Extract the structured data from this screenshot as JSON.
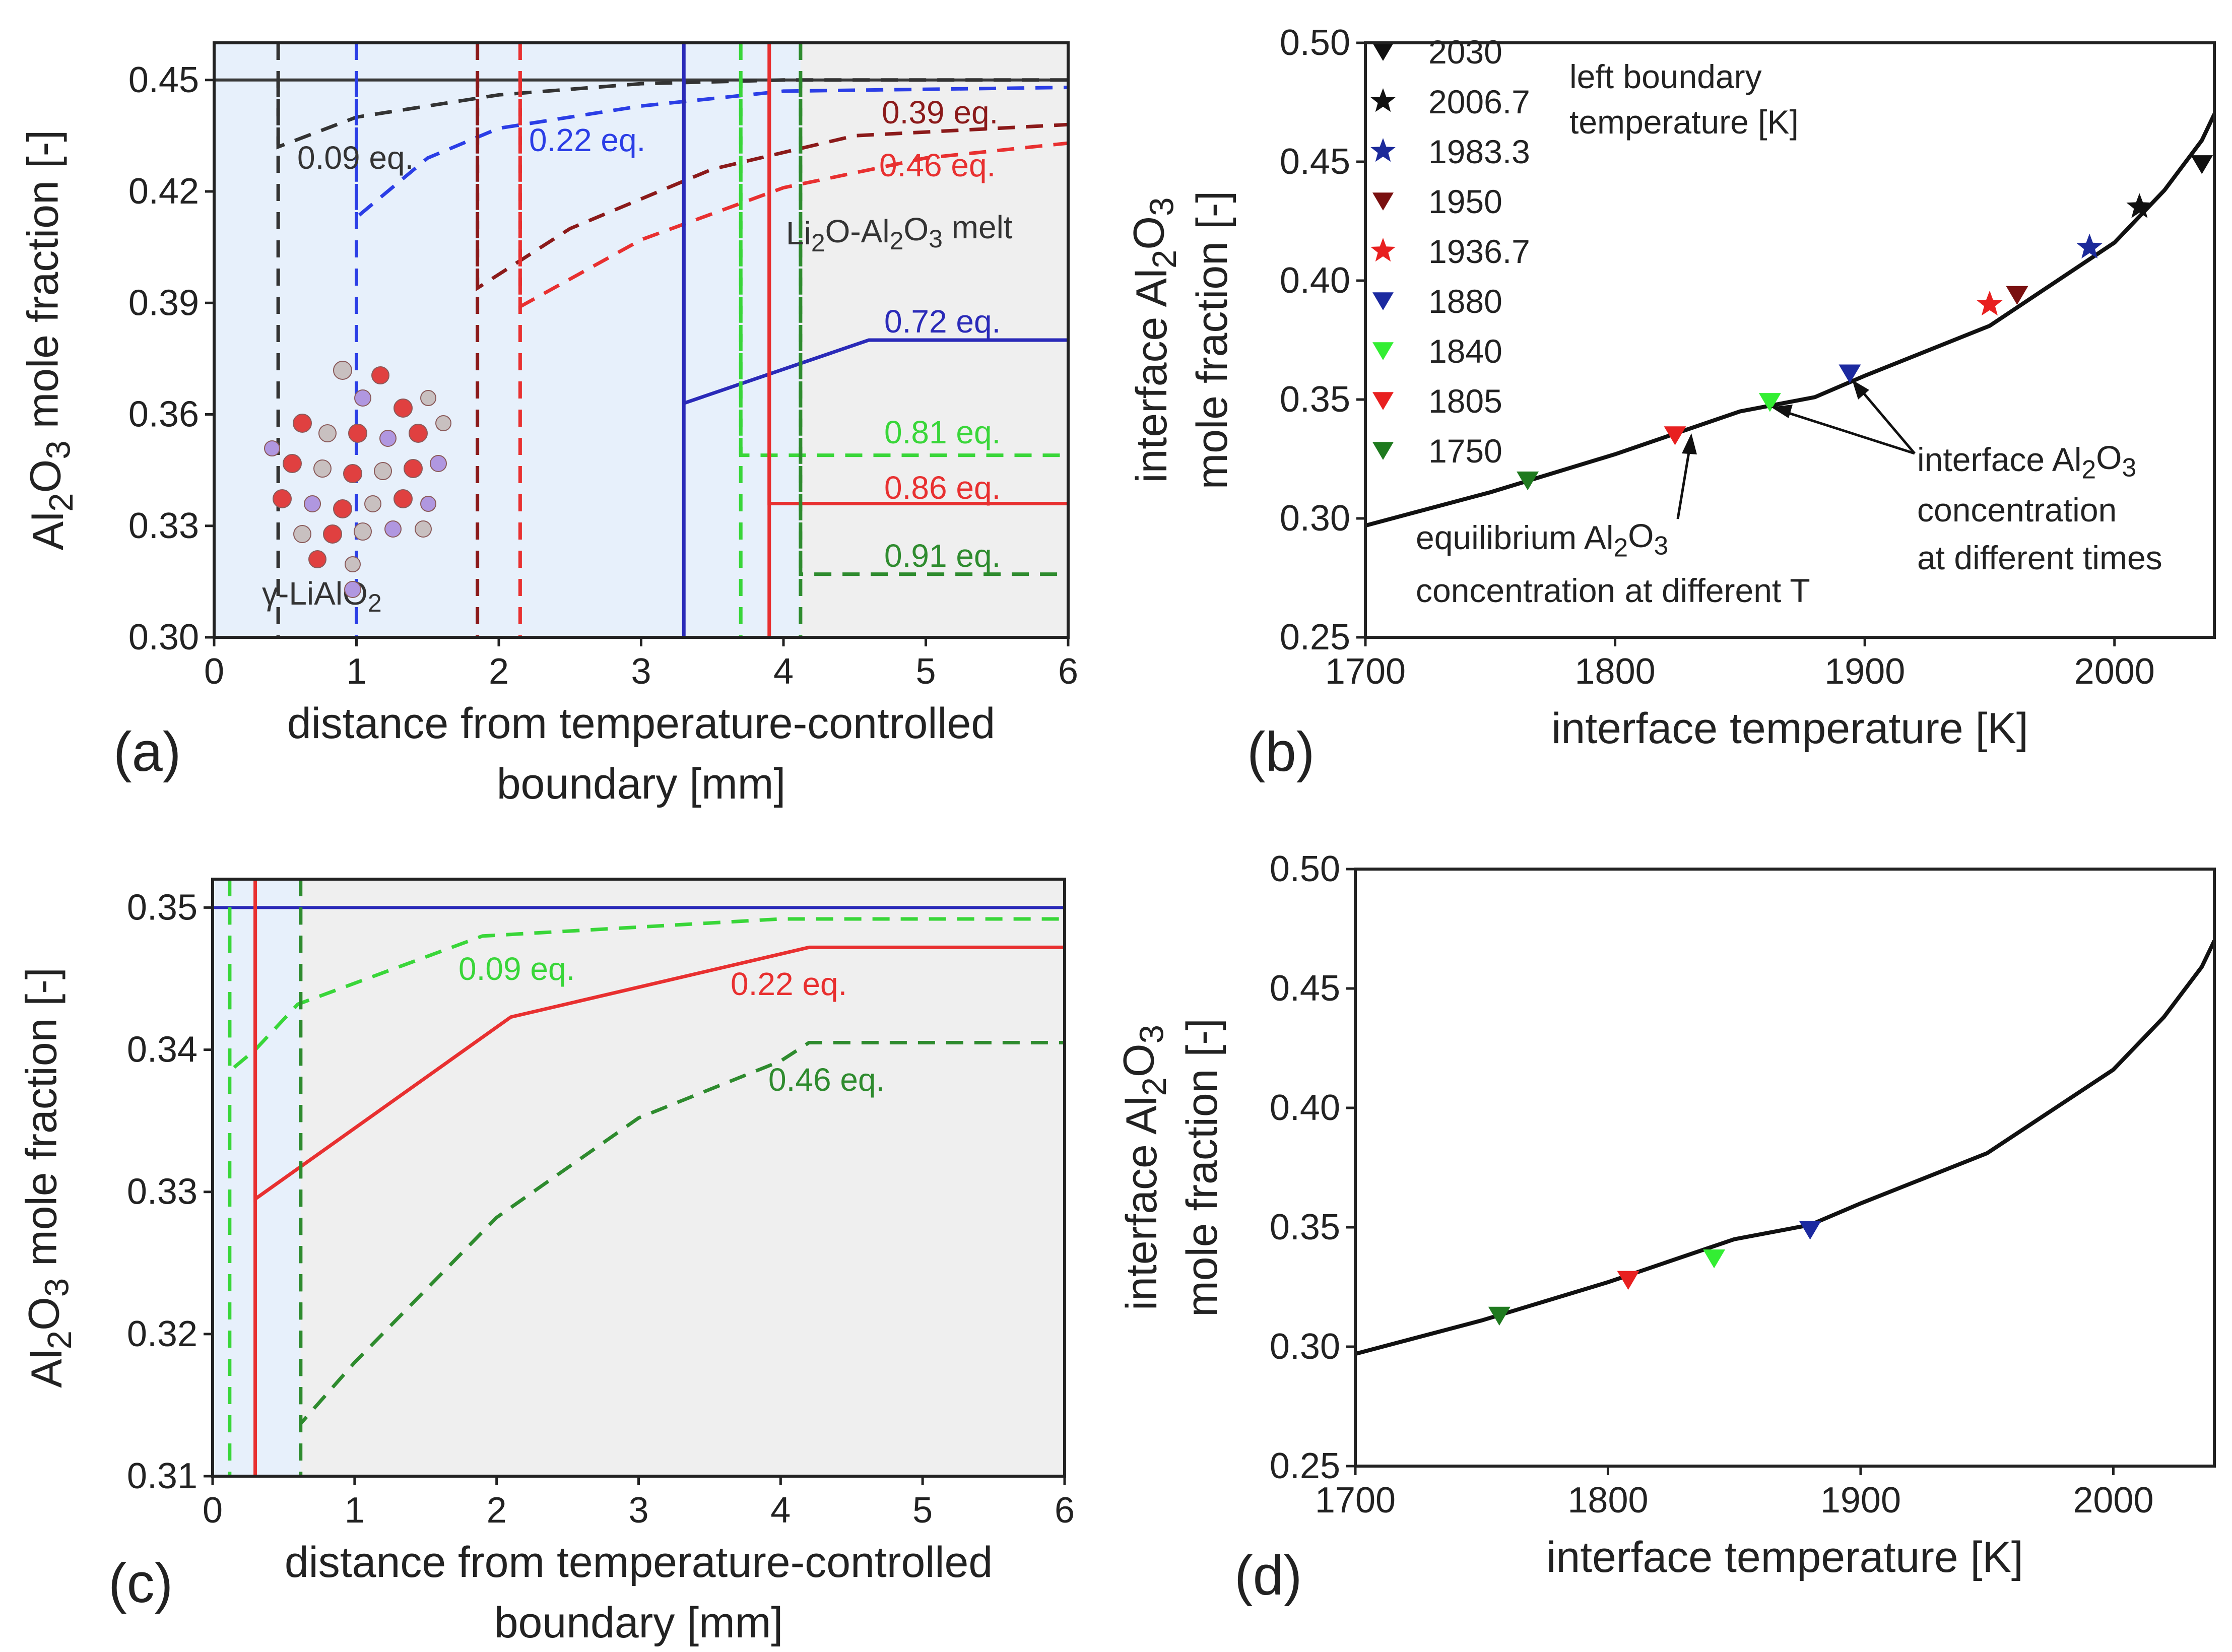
{
  "chart_data": [
    {
      "panel_label": "(a)",
      "type": "line",
      "xlabel": "distance from temperature-controlled boundary [mm]",
      "ylabel": "Al2O3 mole fraction [-]",
      "xlim": [
        0,
        6
      ],
      "ylim": [
        0.3,
        0.46
      ],
      "xticks": [
        "0",
        "1",
        "2",
        "3",
        "4",
        "5",
        "6"
      ],
      "yticks": [
        "0.30",
        "0.33",
        "0.36",
        "0.39",
        "0.42",
        "0.45"
      ],
      "region_labels": {
        "solid": "γ-LiAlO2",
        "melt": "Li2O-Al2O3 melt"
      },
      "equilibrium_line": 0.45,
      "series": [
        {
          "name": "0.09 eq.",
          "color": "#333333",
          "dash": true,
          "interface_x": 0.45,
          "x": [
            0.45,
            0.45,
            1.0,
            2.0,
            3.0,
            4.0,
            6.0
          ],
          "y": [
            0.45,
            0.432,
            0.44,
            0.446,
            0.449,
            0.45,
            0.45
          ]
        },
        {
          "name": "0.22 eq.",
          "color": "#2b3ee6",
          "dash": true,
          "interface_x": 1.0,
          "x": [
            1.0,
            1.0,
            1.5,
            2.0,
            3.0,
            4.0,
            6.0
          ],
          "y": [
            0.45,
            0.413,
            0.429,
            0.437,
            0.443,
            0.447,
            0.448
          ]
        },
        {
          "name": "0.39 eq.",
          "color": "#8b1a1a",
          "dash": true,
          "interface_x": 1.85,
          "x": [
            1.85,
            1.85,
            2.5,
            3.5,
            4.5,
            6.0
          ],
          "y": [
            0.45,
            0.394,
            0.41,
            0.426,
            0.435,
            0.438
          ]
        },
        {
          "name": "0.46 eq.",
          "color": "#e83030",
          "dash": true,
          "interface_x": 2.15,
          "x": [
            2.15,
            2.15,
            3.0,
            4.0,
            5.0,
            6.0
          ],
          "y": [
            0.45,
            0.389,
            0.407,
            0.421,
            0.429,
            0.433
          ]
        },
        {
          "name": "0.72 eq.",
          "color": "#2a2ab8",
          "dash": false,
          "interface_x": 3.3,
          "x": [
            3.3,
            3.3,
            4.6,
            6.0
          ],
          "y": [
            0.45,
            0.363,
            0.38,
            0.38
          ]
        },
        {
          "name": "0.81 eq.",
          "color": "#39d639",
          "dash": true,
          "interface_x": 3.7,
          "x": [
            3.7,
            3.7,
            6.0
          ],
          "y": [
            0.45,
            0.349,
            0.349
          ]
        },
        {
          "name": "0.86 eq.",
          "color": "#e83030",
          "dash": false,
          "interface_x": 3.9,
          "x": [
            3.9,
            3.9,
            6.0
          ],
          "y": [
            0.45,
            0.336,
            0.336
          ]
        },
        {
          "name": "0.91 eq.",
          "color": "#2e8b2e",
          "dash": true,
          "interface_x": 4.12,
          "x": [
            4.12,
            4.12,
            6.0
          ],
          "y": [
            0.45,
            0.317,
            0.317
          ]
        }
      ]
    },
    {
      "panel_label": "(b)",
      "type": "scatter",
      "xlabel": "interface temperature [K]",
      "ylabel": "interface Al2O3 mole fraction [-]",
      "xlim": [
        1700,
        2040
      ],
      "ylim": [
        0.25,
        0.5
      ],
      "xticks": [
        "1700",
        "1800",
        "1900",
        "2000"
      ],
      "yticks": [
        "0.25",
        "0.30",
        "0.35",
        "0.40",
        "0.45",
        "0.50"
      ],
      "equilibrium_curve": {
        "x": [
          1700,
          1750,
          1800,
          1850,
          1880,
          1900,
          1950,
          2000,
          2020,
          2035,
          2040
        ],
        "y": [
          0.297,
          0.311,
          0.327,
          0.345,
          0.351,
          0.36,
          0.381,
          0.416,
          0.438,
          0.459,
          0.47
        ]
      },
      "legend_title": "left boundary temperature [K]",
      "legend": [
        {
          "label": "2030",
          "color": "#111111",
          "marker": "triangle"
        },
        {
          "label": "2006.7",
          "color": "#111111",
          "marker": "star"
        },
        {
          "label": "1983.3",
          "color": "#1c2a9a",
          "marker": "star"
        },
        {
          "label": "1950",
          "color": "#7a1111",
          "marker": "triangle"
        },
        {
          "label": "1936.7",
          "color": "#e82020",
          "marker": "star"
        },
        {
          "label": "1880",
          "color": "#1c2aa0",
          "marker": "triangle"
        },
        {
          "label": "1840",
          "color": "#33ee33",
          "marker": "triangle"
        },
        {
          "label": "1805",
          "color": "#e82020",
          "marker": "triangle"
        },
        {
          "label": "1750",
          "color": "#1f7a1f",
          "marker": "triangle"
        }
      ],
      "points": [
        {
          "name": "2030",
          "x": 2035,
          "y": 0.449,
          "color": "#111111",
          "marker": "triangle"
        },
        {
          "name": "2006.7",
          "x": 2010,
          "y": 0.431,
          "color": "#111111",
          "marker": "star"
        },
        {
          "name": "1983.3",
          "x": 1990,
          "y": 0.414,
          "color": "#1c2a9a",
          "marker": "star"
        },
        {
          "name": "1950",
          "x": 1961,
          "y": 0.394,
          "color": "#7a1111",
          "marker": "triangle"
        },
        {
          "name": "1936.7",
          "x": 1950,
          "y": 0.39,
          "color": "#e82020",
          "marker": "star"
        },
        {
          "name": "1880",
          "x": 1894,
          "y": 0.361,
          "color": "#1c2aa0",
          "marker": "triangle"
        },
        {
          "name": "1840",
          "x": 1862,
          "y": 0.349,
          "color": "#33ee33",
          "marker": "triangle"
        },
        {
          "name": "1805",
          "x": 1824,
          "y": 0.335,
          "color": "#e82020",
          "marker": "triangle"
        },
        {
          "name": "1750",
          "x": 1765,
          "y": 0.316,
          "color": "#1f7a1f",
          "marker": "triangle"
        }
      ],
      "annotations": [
        {
          "text_lines": [
            "equilibrium Al2O3",
            "concentration at different T"
          ]
        },
        {
          "text_lines": [
            "interface Al2O3",
            "concentration",
            "at different times"
          ]
        }
      ]
    },
    {
      "panel_label": "(c)",
      "type": "line",
      "xlabel": "distance from temperature-controlled boundary [mm]",
      "ylabel": "Al2O3 mole fraction [-]",
      "xlim": [
        0,
        6
      ],
      "ylim": [
        0.31,
        0.352
      ],
      "xticks": [
        "0",
        "1",
        "2",
        "3",
        "4",
        "5",
        "6"
      ],
      "yticks": [
        "0.31",
        "0.32",
        "0.33",
        "0.34",
        "0.35"
      ],
      "equilibrium_line": 0.35,
      "series": [
        {
          "name": "0.09 eq.",
          "color": "#39d639",
          "dash": true,
          "interface_x": 0.12,
          "x": [
            0.12,
            0.12,
            0.3,
            0.6,
            1.9,
            4.0,
            6.0
          ],
          "y": [
            0.35,
            0.3385,
            0.34,
            0.3432,
            0.348,
            0.3492,
            0.3492
          ]
        },
        {
          "name": "0.22 eq.",
          "color": "#e83030",
          "dash": false,
          "interface_x": 0.3,
          "x": [
            0.3,
            0.3,
            2.1,
            4.2,
            6.0
          ],
          "y": [
            0.35,
            0.3295,
            0.3423,
            0.3472,
            0.3472
          ]
        },
        {
          "name": "0.46 eq.",
          "color": "#2e8b2e",
          "dash": true,
          "interface_x": 0.62,
          "x": [
            0.62,
            0.62,
            1.0,
            2.0,
            3.0,
            4.0,
            4.2,
            6.0
          ],
          "y": [
            0.35,
            0.3137,
            0.318,
            0.3282,
            0.3352,
            0.3392,
            0.3405,
            0.3405
          ]
        }
      ]
    },
    {
      "panel_label": "(d)",
      "type": "scatter",
      "xlabel": "interface temperature [K]",
      "ylabel": "interface Al2O3 mole fraction [-]",
      "xlim": [
        1700,
        2040
      ],
      "ylim": [
        0.25,
        0.5
      ],
      "xticks": [
        "1700",
        "1800",
        "1900",
        "2000"
      ],
      "yticks": [
        "0.25",
        "0.30",
        "0.35",
        "0.40",
        "0.45",
        "0.50"
      ],
      "equilibrium_curve": {
        "x": [
          1700,
          1750,
          1800,
          1850,
          1880,
          1900,
          1950,
          2000,
          2020,
          2035,
          2040
        ],
        "y": [
          0.297,
          0.311,
          0.327,
          0.345,
          0.351,
          0.36,
          0.381,
          0.416,
          0.438,
          0.459,
          0.47
        ]
      },
      "points": [
        {
          "x": 1757,
          "y": 0.313,
          "color": "#1f7a1f",
          "marker": "triangle"
        },
        {
          "x": 1808,
          "y": 0.328,
          "color": "#e82020",
          "marker": "triangle"
        },
        {
          "x": 1842,
          "y": 0.337,
          "color": "#33ee33",
          "marker": "triangle"
        },
        {
          "x": 1880,
          "y": 0.349,
          "color": "#1c2aa0",
          "marker": "triangle"
        }
      ]
    }
  ]
}
